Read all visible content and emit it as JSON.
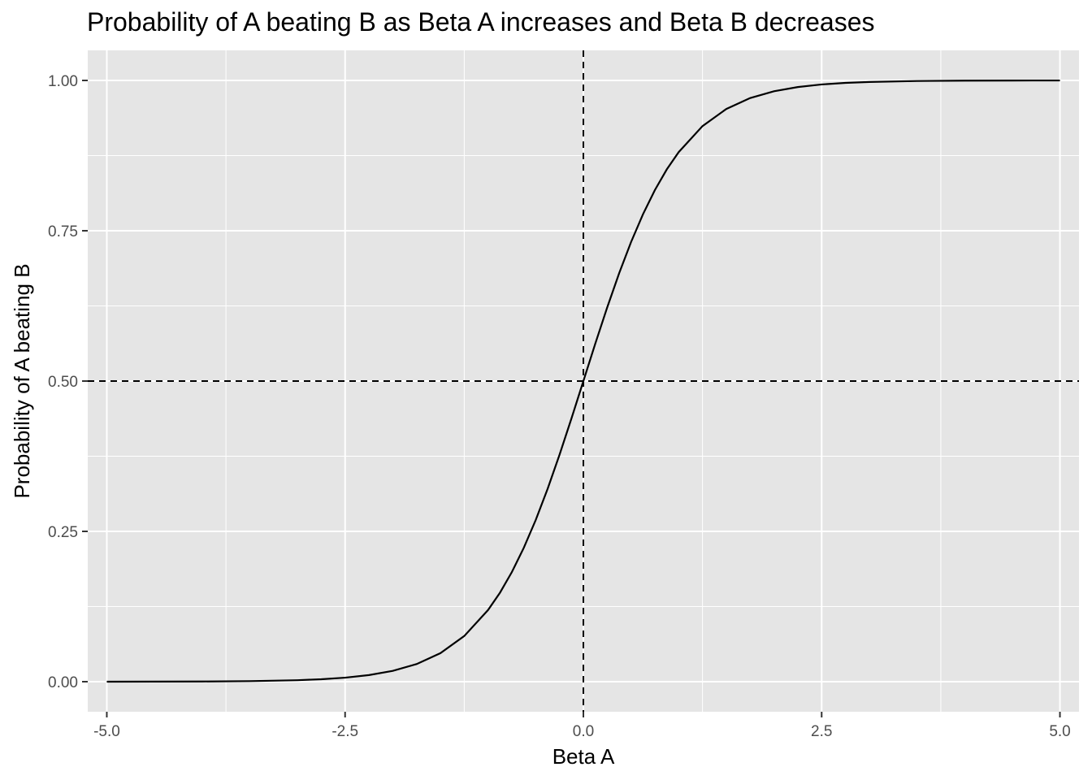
{
  "chart_data": {
    "type": "line",
    "title": "Probability of A beating B as Beta A increases and Beta B decreases",
    "xlabel": "Beta A",
    "ylabel": "Probability of A beating B",
    "xlim": [
      -5.2,
      5.2
    ],
    "ylim": [
      -0.05,
      1.05
    ],
    "x_ticks": [
      -5.0,
      -2.5,
      0.0,
      2.5,
      5.0
    ],
    "x_tick_labels": [
      "-5.0",
      "-2.5",
      "0.0",
      "2.5",
      "5.0"
    ],
    "y_ticks": [
      0.0,
      0.25,
      0.5,
      0.75,
      1.0
    ],
    "y_tick_labels": [
      "0.00",
      "0.25",
      "0.50",
      "0.75",
      "1.00"
    ],
    "grid": true,
    "panel_background": "#e5e5e5",
    "grid_color": "#ffffff",
    "line_color": "#000000",
    "series": [
      {
        "x": [
          -5.0,
          -4.5,
          -4.0,
          -3.5,
          -3.0,
          -2.75,
          -2.5,
          -2.25,
          -2.0,
          -1.75,
          -1.5,
          -1.25,
          -1.0,
          -0.875,
          -0.75,
          -0.625,
          -0.5,
          -0.375,
          -0.25,
          -0.125,
          0.0,
          0.125,
          0.25,
          0.375,
          0.5,
          0.625,
          0.75,
          0.875,
          1.0,
          1.25,
          1.5,
          1.75,
          2.0,
          2.25,
          2.5,
          2.75,
          3.0,
          3.5,
          4.0,
          4.5,
          5.0
        ],
        "y": [
          4.54e-05,
          0.000123,
          0.000335,
          0.000911,
          0.00247,
          0.00407,
          0.00669,
          0.011,
          0.018,
          0.0293,
          0.0474,
          0.0759,
          0.1192,
          0.148,
          0.1824,
          0.2227,
          0.2689,
          0.3208,
          0.3775,
          0.4378,
          0.5,
          0.5622,
          0.6225,
          0.6792,
          0.7311,
          0.7773,
          0.8176,
          0.852,
          0.8808,
          0.9241,
          0.9526,
          0.9707,
          0.982,
          0.989,
          0.9933,
          0.9959,
          0.9975,
          0.99909,
          0.99966,
          0.99988,
          0.99995
        ]
      }
    ],
    "reference_lines": [
      {
        "orientation": "vertical",
        "value": 0.0,
        "style": "dashed"
      },
      {
        "orientation": "horizontal",
        "value": 0.5,
        "style": "dashed"
      }
    ]
  }
}
